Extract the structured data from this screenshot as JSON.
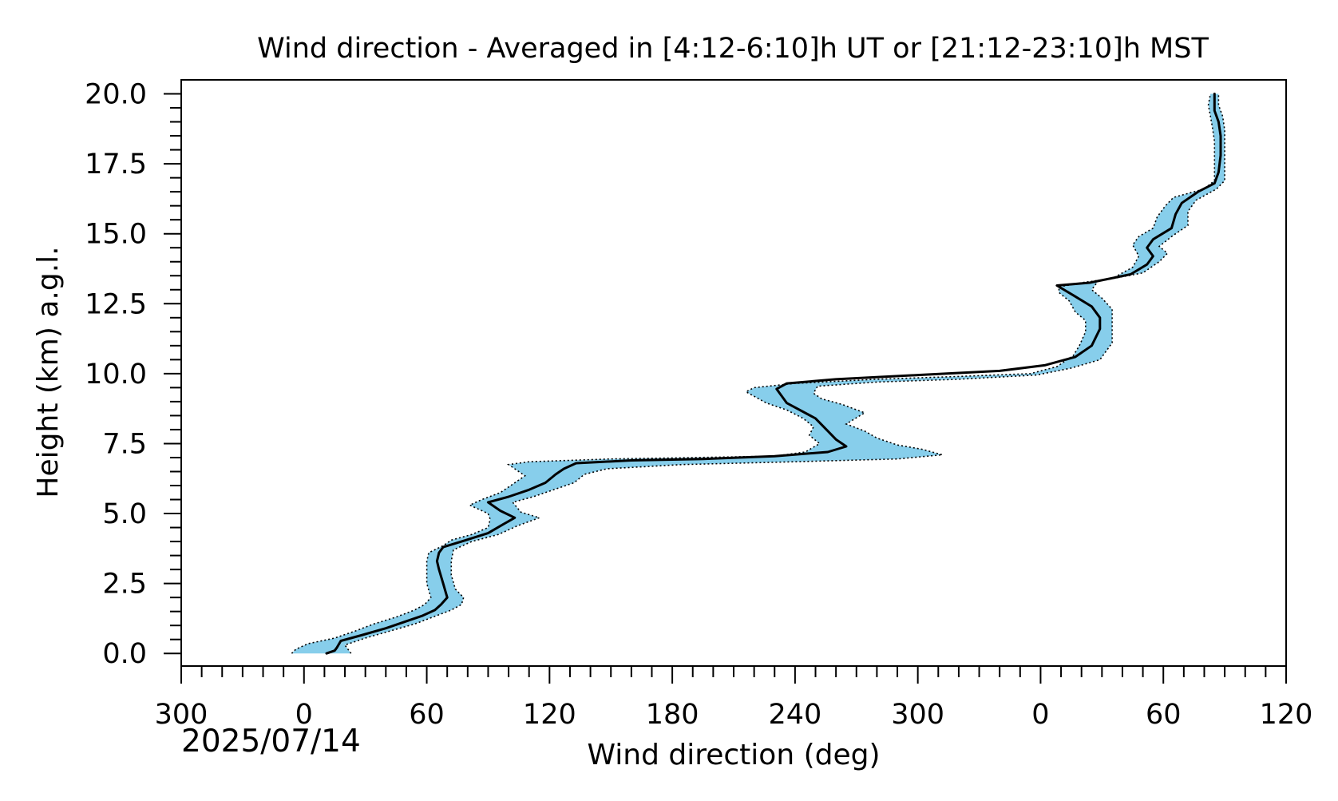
{
  "chart_data": {
    "type": "line",
    "title": "Wind direction - Averaged in [4:12-6:10]h UT or [21:12-23:10]h MST",
    "xlabel": "Wind direction (deg)",
    "ylabel": "Height (km) a.g.l.",
    "date_label": "2025/07/14",
    "x_unwrapped_lim": [
      300,
      840
    ],
    "ylim": [
      -0.45,
      20.5
    ],
    "x_ticks": [
      {
        "value": 300,
        "label": "300"
      },
      {
        "value": 360,
        "label": "0"
      },
      {
        "value": 420,
        "label": "60"
      },
      {
        "value": 480,
        "label": "120"
      },
      {
        "value": 540,
        "label": "180"
      },
      {
        "value": 600,
        "label": "240"
      },
      {
        "value": 660,
        "label": "300"
      },
      {
        "value": 720,
        "label": "0"
      },
      {
        "value": 780,
        "label": "60"
      },
      {
        "value": 840,
        "label": "120"
      }
    ],
    "y_ticks": [
      {
        "value": 0.0,
        "label": "0.0"
      },
      {
        "value": 2.5,
        "label": "2.5"
      },
      {
        "value": 5.0,
        "label": "5.0"
      },
      {
        "value": 7.5,
        "label": "7.5"
      },
      {
        "value": 10.0,
        "label": "10.0"
      },
      {
        "value": 12.5,
        "label": "12.5"
      },
      {
        "value": 15.0,
        "label": "15.0"
      },
      {
        "value": 17.5,
        "label": "17.5"
      },
      {
        "value": 20.0,
        "label": "20.0"
      }
    ],
    "colors": {
      "band_fill": "#87ceeb",
      "mean_line": "#000000",
      "band_edge": "#000000",
      "axes": "#000000"
    },
    "series": [
      {
        "role": "mean",
        "points": [
          [
            371,
            0.0
          ],
          [
            375,
            0.1
          ],
          [
            376,
            0.2
          ],
          [
            378,
            0.45
          ],
          [
            388,
            0.65
          ],
          [
            400,
            0.9
          ],
          [
            410,
            1.15
          ],
          [
            418,
            1.35
          ],
          [
            424,
            1.55
          ],
          [
            427,
            1.75
          ],
          [
            430,
            2.0
          ],
          [
            428,
            2.5
          ],
          [
            426,
            3.0
          ],
          [
            425,
            3.3
          ],
          [
            426,
            3.6
          ],
          [
            428,
            3.8
          ],
          [
            437,
            4.0
          ],
          [
            450,
            4.3
          ],
          [
            457,
            4.6
          ],
          [
            463,
            4.85
          ],
          [
            456,
            5.1
          ],
          [
            450,
            5.4
          ],
          [
            460,
            5.6
          ],
          [
            470,
            5.85
          ],
          [
            478,
            6.1
          ],
          [
            483,
            6.4
          ],
          [
            487,
            6.6
          ],
          [
            493,
            6.8
          ],
          [
            520,
            6.9
          ],
          [
            555,
            6.95
          ],
          [
            590,
            7.05
          ],
          [
            616,
            7.2
          ],
          [
            625,
            7.4
          ],
          [
            620,
            7.65
          ],
          [
            616,
            7.95
          ],
          [
            610,
            8.4
          ],
          [
            596,
            8.95
          ],
          [
            591,
            9.45
          ],
          [
            596,
            9.65
          ],
          [
            620,
            9.8
          ],
          [
            660,
            9.95
          ],
          [
            700,
            10.1
          ],
          [
            722,
            10.3
          ],
          [
            737,
            10.6
          ],
          [
            745,
            11.0
          ],
          [
            749,
            11.6
          ],
          [
            749,
            12.0
          ],
          [
            745,
            12.4
          ],
          [
            736,
            12.8
          ],
          [
            728,
            13.15
          ],
          [
            744,
            13.25
          ],
          [
            764,
            13.55
          ],
          [
            772,
            13.9
          ],
          [
            775,
            14.2
          ],
          [
            772,
            14.5
          ],
          [
            775,
            14.8
          ],
          [
            784,
            15.2
          ],
          [
            786,
            15.7
          ],
          [
            789,
            16.1
          ],
          [
            797,
            16.5
          ],
          [
            805,
            16.8
          ],
          [
            807,
            17.2
          ],
          [
            808,
            17.8
          ],
          [
            808,
            18.5
          ],
          [
            807,
            19.0
          ],
          [
            805,
            19.4
          ],
          [
            805,
            20.0
          ]
        ]
      },
      {
        "role": "band_upper",
        "points": [
          [
            383,
            0.0
          ],
          [
            380,
            0.3
          ],
          [
            390,
            0.55
          ],
          [
            402,
            0.8
          ],
          [
            414,
            1.05
          ],
          [
            423,
            1.3
          ],
          [
            432,
            1.55
          ],
          [
            437,
            1.75
          ],
          [
            438,
            2.0
          ],
          [
            434,
            2.3
          ],
          [
            432,
            2.8
          ],
          [
            432,
            3.3
          ],
          [
            433,
            3.7
          ],
          [
            442,
            4.0
          ],
          [
            455,
            4.25
          ],
          [
            464,
            4.55
          ],
          [
            475,
            4.85
          ],
          [
            466,
            5.05
          ],
          [
            462,
            5.4
          ],
          [
            472,
            5.6
          ],
          [
            484,
            5.9
          ],
          [
            492,
            6.1
          ],
          [
            497,
            6.4
          ],
          [
            508,
            6.6
          ],
          [
            545,
            6.75
          ],
          [
            600,
            6.85
          ],
          [
            650,
            6.95
          ],
          [
            672,
            7.1
          ],
          [
            662,
            7.3
          ],
          [
            650,
            7.45
          ],
          [
            640,
            7.7
          ],
          [
            634,
            7.95
          ],
          [
            625,
            8.2
          ],
          [
            634,
            8.6
          ],
          [
            623,
            8.9
          ],
          [
            613,
            9.1
          ],
          [
            609,
            9.3
          ],
          [
            611,
            9.55
          ],
          [
            640,
            9.7
          ],
          [
            680,
            9.8
          ],
          [
            718,
            9.95
          ],
          [
            735,
            10.2
          ],
          [
            749,
            10.5
          ],
          [
            755,
            11.1
          ],
          [
            755,
            11.8
          ],
          [
            755,
            12.3
          ],
          [
            750,
            12.7
          ],
          [
            745,
            13.0
          ],
          [
            748,
            13.3
          ],
          [
            770,
            13.6
          ],
          [
            778,
            14.0
          ],
          [
            782,
            14.3
          ],
          [
            778,
            14.55
          ],
          [
            784,
            14.9
          ],
          [
            792,
            15.3
          ],
          [
            792,
            15.8
          ],
          [
            796,
            16.2
          ],
          [
            806,
            16.6
          ],
          [
            810,
            16.9
          ],
          [
            810,
            17.3
          ],
          [
            810,
            18.0
          ],
          [
            810,
            18.7
          ],
          [
            809,
            19.2
          ],
          [
            807,
            19.6
          ],
          [
            807,
            20.0
          ]
        ]
      },
      {
        "role": "band_lower",
        "points": [
          [
            354,
            0.0
          ],
          [
            356,
            0.15
          ],
          [
            362,
            0.35
          ],
          [
            375,
            0.55
          ],
          [
            385,
            0.8
          ],
          [
            394,
            1.05
          ],
          [
            405,
            1.3
          ],
          [
            414,
            1.55
          ],
          [
            419,
            1.75
          ],
          [
            422,
            2.0
          ],
          [
            420,
            2.5
          ],
          [
            420,
            3.0
          ],
          [
            420,
            3.3
          ],
          [
            421,
            3.6
          ],
          [
            428,
            3.85
          ],
          [
            432,
            4.05
          ],
          [
            442,
            4.25
          ],
          [
            450,
            4.5
          ],
          [
            451,
            4.8
          ],
          [
            450,
            5.0
          ],
          [
            441,
            5.3
          ],
          [
            447,
            5.5
          ],
          [
            456,
            5.75
          ],
          [
            462,
            6.05
          ],
          [
            468,
            6.35
          ],
          [
            463,
            6.6
          ],
          [
            460,
            6.75
          ],
          [
            470,
            6.85
          ],
          [
            510,
            6.95
          ],
          [
            550,
            7.0
          ],
          [
            590,
            7.05
          ],
          [
            605,
            7.2
          ],
          [
            612,
            7.5
          ],
          [
            607,
            7.8
          ],
          [
            609,
            8.1
          ],
          [
            604,
            8.4
          ],
          [
            596,
            8.7
          ],
          [
            586,
            8.95
          ],
          [
            576,
            9.35
          ],
          [
            580,
            9.5
          ],
          [
            600,
            9.65
          ],
          [
            640,
            9.8
          ],
          [
            680,
            9.9
          ],
          [
            715,
            10.0
          ],
          [
            728,
            10.25
          ],
          [
            736,
            10.65
          ],
          [
            739,
            11.0
          ],
          [
            742,
            11.5
          ],
          [
            742,
            11.9
          ],
          [
            737,
            12.2
          ],
          [
            734,
            12.6
          ],
          [
            729,
            12.9
          ],
          [
            729,
            13.1
          ],
          [
            740,
            13.25
          ],
          [
            755,
            13.4
          ],
          [
            765,
            13.8
          ],
          [
            768,
            14.2
          ],
          [
            765,
            14.6
          ],
          [
            768,
            14.9
          ],
          [
            775,
            15.2
          ],
          [
            777,
            15.6
          ],
          [
            781,
            16.0
          ],
          [
            785,
            16.3
          ],
          [
            800,
            16.6
          ],
          [
            805,
            16.9
          ],
          [
            805,
            17.3
          ],
          [
            805,
            17.8
          ],
          [
            805,
            18.3
          ],
          [
            804,
            18.8
          ],
          [
            803,
            19.2
          ],
          [
            802,
            19.6
          ],
          [
            803,
            20.0
          ]
        ]
      }
    ]
  }
}
